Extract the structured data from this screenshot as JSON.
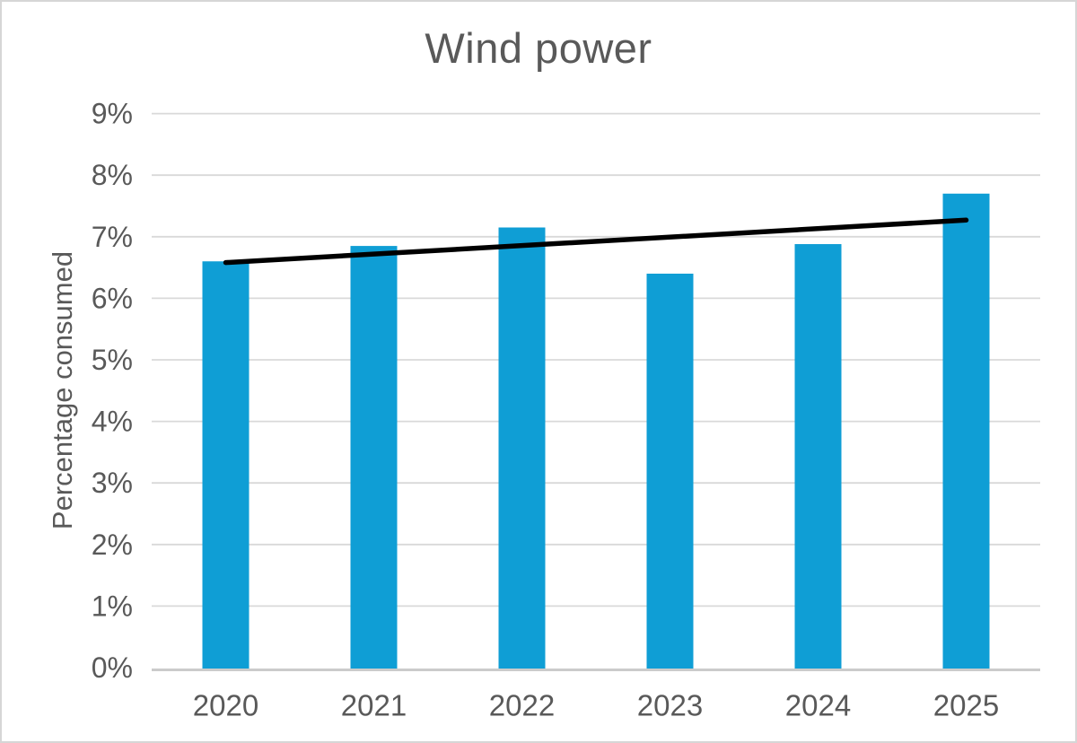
{
  "window": {
    "background_color": "#ffffff",
    "border_color": "#d6d6d6"
  },
  "chart_data": {
    "type": "bar",
    "title": "Wind power",
    "subtitle": "",
    "xlabel": "",
    "ylabel": "Percentage consumed",
    "categories": [
      "2020",
      "2021",
      "2022",
      "2023",
      "2024",
      "2025"
    ],
    "values": [
      6.6,
      6.85,
      7.15,
      6.4,
      6.88,
      7.7
    ],
    "value_unit": "%",
    "ylim": [
      0,
      9
    ],
    "ytick_step": 1,
    "ytick_labels": [
      "0%",
      "1%",
      "2%",
      "3%",
      "4%",
      "5%",
      "6%",
      "7%",
      "8%",
      "9%"
    ],
    "grid": true,
    "legend_position": "none",
    "bar_color": "#0f9ed5",
    "text_color": "#595959",
    "gridline_color": "#d9d9d9",
    "axisline_color": "#cbcbcb",
    "trendline": {
      "type": "linear",
      "color": "#000000",
      "start_value": 6.58,
      "end_value": 7.27
    }
  }
}
